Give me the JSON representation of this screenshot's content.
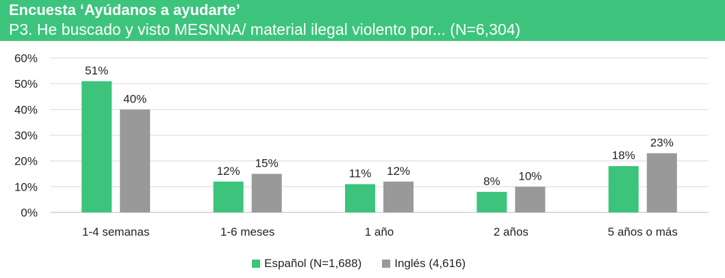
{
  "header": {
    "title": "Encuesta ‘Ayúdanos a ayudarte’",
    "subtitle": "P3. He buscado y visto MESNNA/ material ilegal violento por... (N=6,304)"
  },
  "chart_data": {
    "type": "bar",
    "categories": [
      "1-4 semanas",
      "1-6 meses",
      "1 año",
      "2 años",
      "5 años o más"
    ],
    "series": [
      {
        "name": "Español (N=1,688)",
        "color": "#3cc47c",
        "values": [
          51,
          12,
          11,
          8,
          18
        ]
      },
      {
        "name": "Inglés  (4,616)",
        "color": "#999999",
        "values": [
          40,
          15,
          12,
          10,
          23
        ]
      }
    ],
    "data_labels": [
      [
        "51%",
        "12%",
        "11%",
        "8%",
        "18%"
      ],
      [
        "40%",
        "15%",
        "12%",
        "10%",
        "23%"
      ]
    ],
    "yticks": [
      "0%",
      "10%",
      "20%",
      "30%",
      "40%",
      "50%",
      "60%"
    ],
    "ylim": [
      0,
      60
    ],
    "grid": true,
    "legend": "bottom"
  }
}
